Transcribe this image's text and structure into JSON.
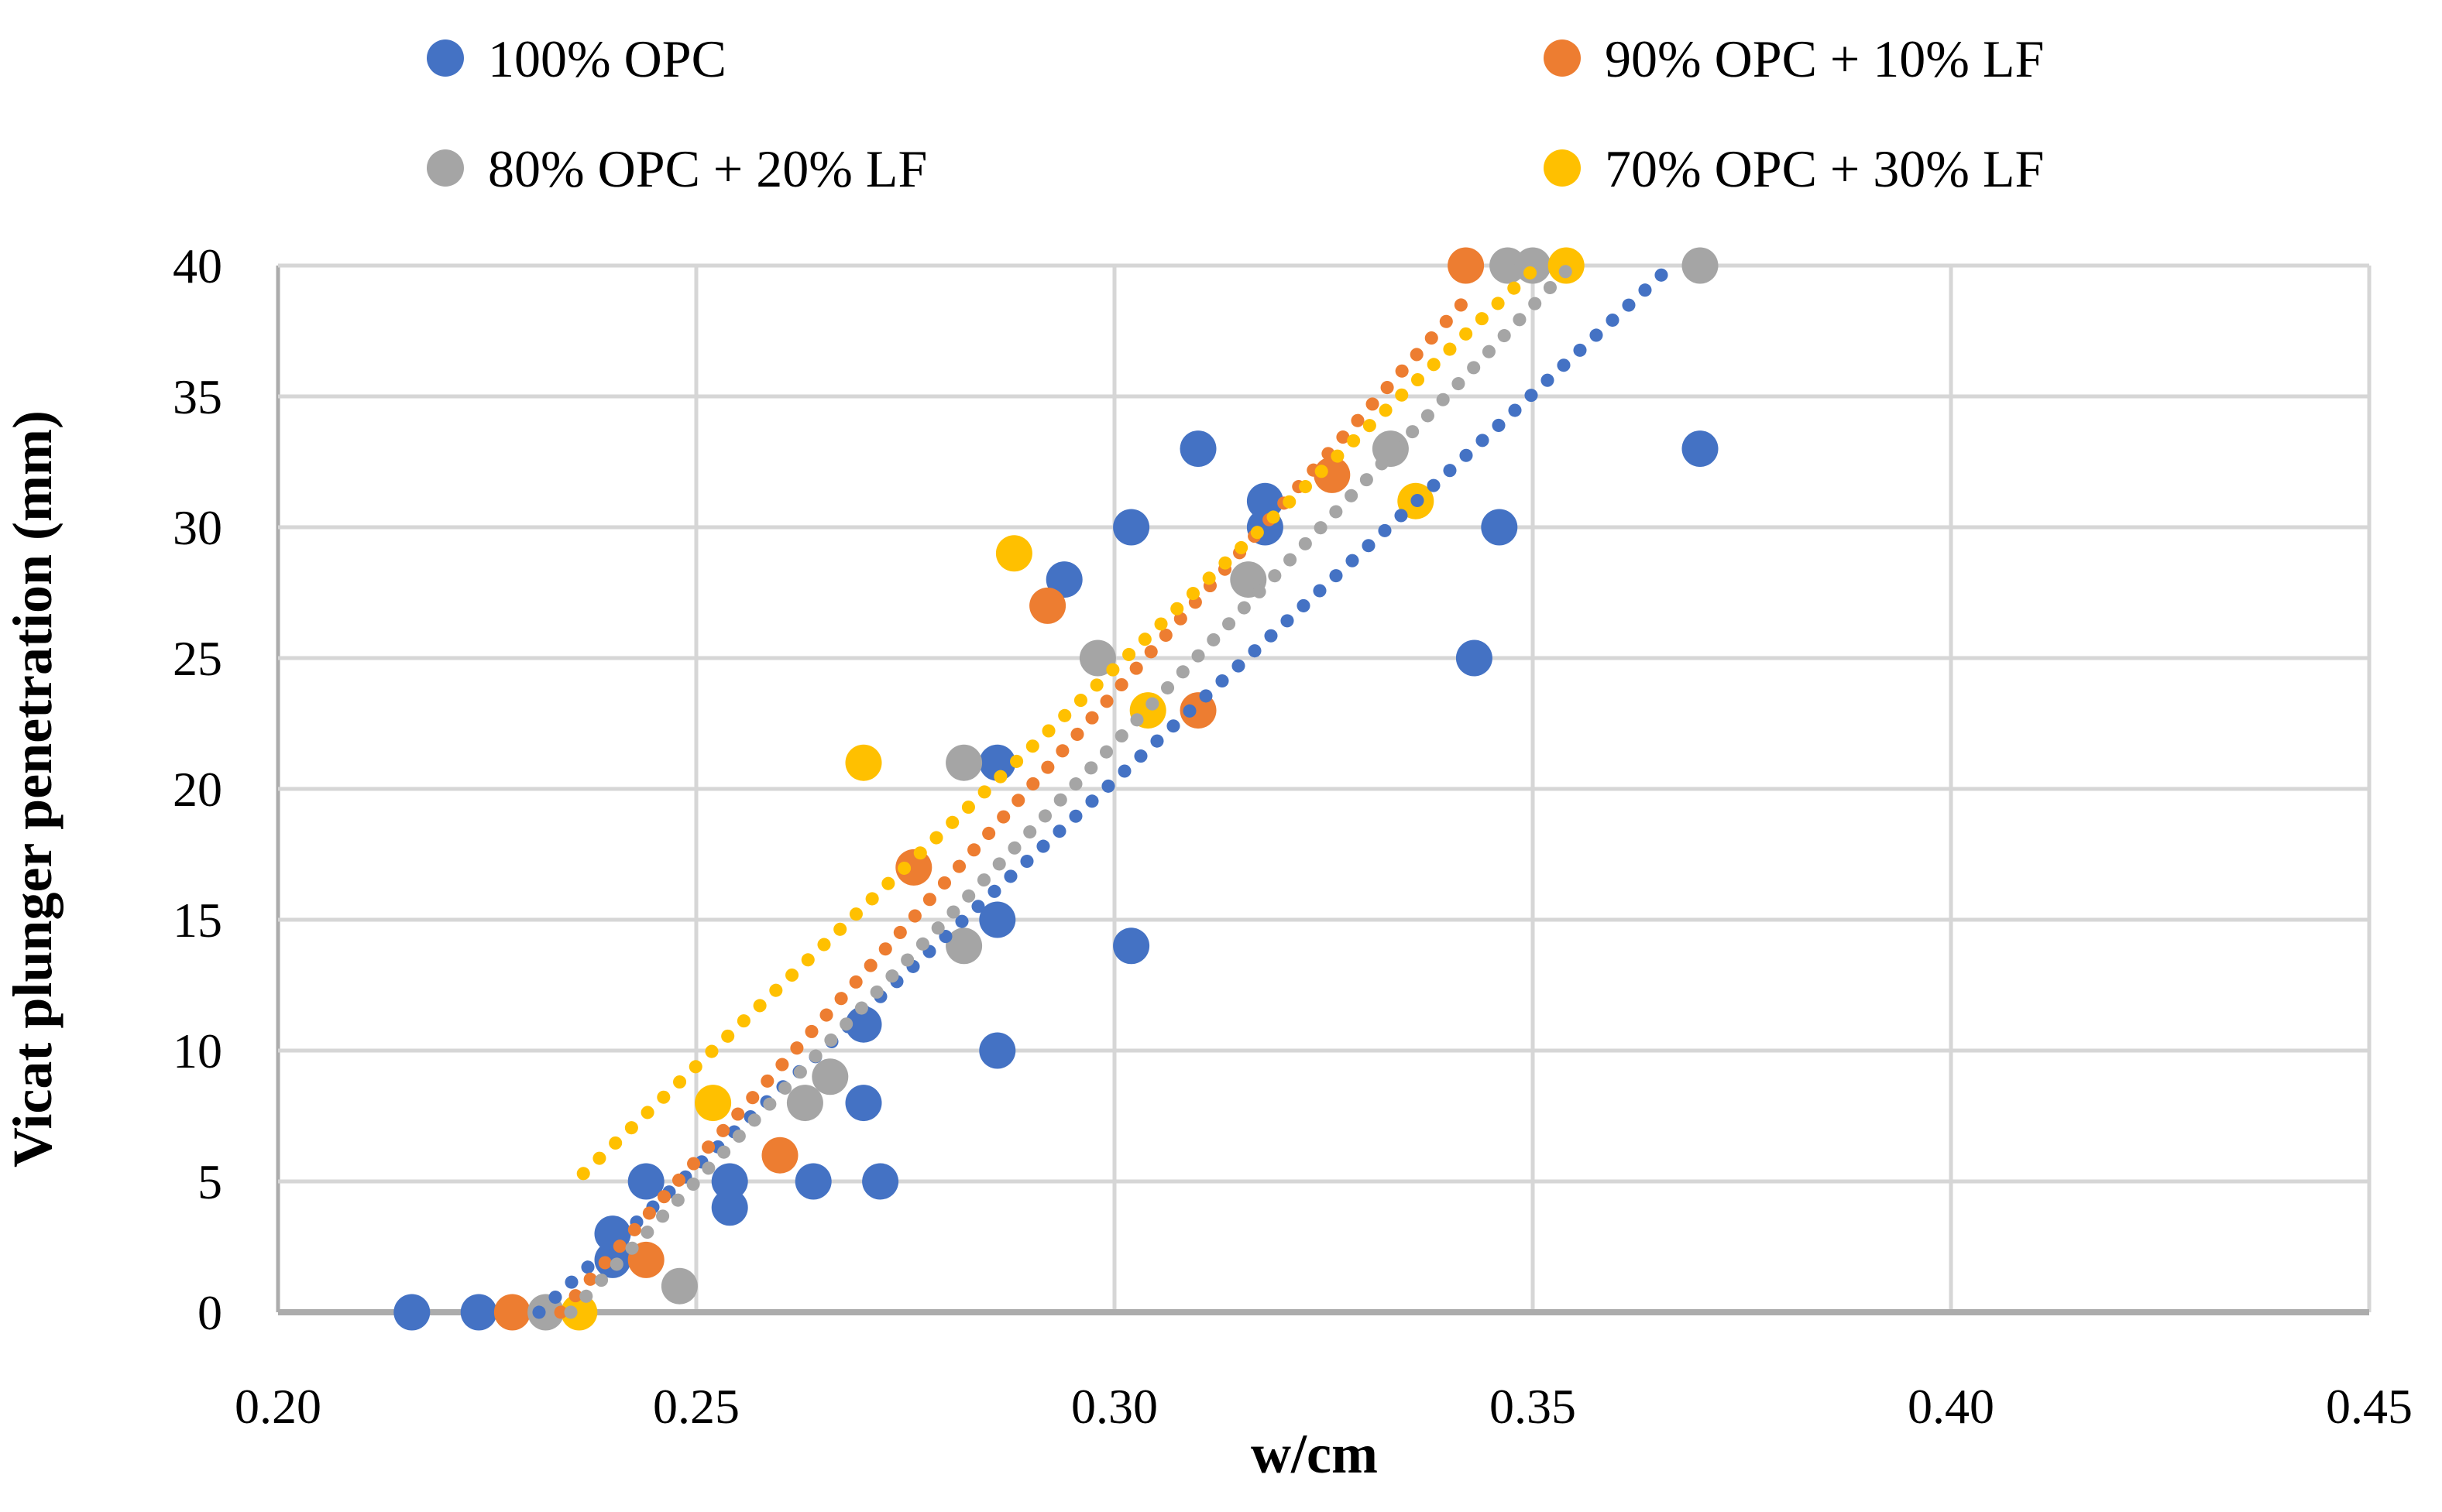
{
  "chart_data": {
    "type": "scatter",
    "title": "",
    "xlabel": "w/cm",
    "ylabel": "Vicat plunger penetration (mm)",
    "xlim": [
      0.2,
      0.45
    ],
    "ylim": [
      0,
      40
    ],
    "x_tick_labels": [
      "0.20",
      "0.25",
      "0.30",
      "0.35",
      "0.40",
      "0.45"
    ],
    "x_tick_values": [
      0.2,
      0.25,
      0.3,
      0.35,
      0.4,
      0.45
    ],
    "y_tick_labels": [
      "0",
      "5",
      "10",
      "15",
      "20",
      "25",
      "30",
      "35",
      "40"
    ],
    "y_tick_values": [
      0,
      5,
      10,
      15,
      20,
      25,
      30,
      35,
      40
    ],
    "grid": true,
    "legend_position": "top",
    "colors": {
      "gridline": "#D6D6D6",
      "axis_line": "#ACACAC",
      "text": "#000000"
    },
    "series": [
      {
        "name": "100% OPC",
        "color": "#4472C4",
        "points": [
          [
            0.216,
            0
          ],
          [
            0.224,
            0
          ],
          [
            0.24,
            2
          ],
          [
            0.24,
            3
          ],
          [
            0.244,
            5
          ],
          [
            0.254,
            4
          ],
          [
            0.254,
            5
          ],
          [
            0.264,
            5
          ],
          [
            0.272,
            5
          ],
          [
            0.27,
            8
          ],
          [
            0.286,
            10
          ],
          [
            0.27,
            11
          ],
          [
            0.302,
            14
          ],
          [
            0.286,
            15
          ],
          [
            0.286,
            21
          ],
          [
            0.294,
            28
          ],
          [
            0.302,
            30
          ],
          [
            0.31,
            33
          ],
          [
            0.318,
            30
          ],
          [
            0.318,
            31
          ],
          [
            0.343,
            25
          ],
          [
            0.346,
            30
          ],
          [
            0.37,
            33
          ]
        ],
        "trendline": {
          "style": "dotted",
          "from": [
            0.2312,
            0
          ],
          "to": [
            0.3666,
            40
          ]
        }
      },
      {
        "name": "90% OPC + 10% LF",
        "color": "#ED7D31",
        "points": [
          [
            0.228,
            0
          ],
          [
            0.244,
            2
          ],
          [
            0.26,
            6
          ],
          [
            0.276,
            17
          ],
          [
            0.292,
            27
          ],
          [
            0.31,
            23
          ],
          [
            0.326,
            32
          ],
          [
            0.342,
            40
          ]
        ],
        "trendline": {
          "style": "dotted",
          "from": [
            0.2338,
            0
          ],
          "to": [
            0.342,
            38.7
          ]
        }
      },
      {
        "name": "80% OPC + 20% LF",
        "color": "#A5A5A5",
        "points": [
          [
            0.232,
            0
          ],
          [
            0.248,
            1
          ],
          [
            0.263,
            8
          ],
          [
            0.266,
            9
          ],
          [
            0.282,
            14
          ],
          [
            0.282,
            21
          ],
          [
            0.298,
            25
          ],
          [
            0.316,
            28
          ],
          [
            0.333,
            33
          ],
          [
            0.347,
            40
          ],
          [
            0.35,
            40
          ],
          [
            0.37,
            40
          ]
        ],
        "trendline": {
          "style": "dotted",
          "from": [
            0.235,
            0
          ],
          "to": [
            0.3546,
            40
          ]
        }
      },
      {
        "name": "70% OPC + 30% LF",
        "color": "#FFC000",
        "points": [
          [
            0.236,
            0
          ],
          [
            0.252,
            8
          ],
          [
            0.27,
            21
          ],
          [
            0.288,
            29
          ],
          [
            0.304,
            23
          ],
          [
            0.336,
            31
          ],
          [
            0.354,
            40
          ]
        ],
        "trendline": {
          "style": "dotted",
          "from": [
            0.2365,
            5.3
          ],
          "to": [
            0.3506,
            40
          ]
        }
      }
    ]
  }
}
